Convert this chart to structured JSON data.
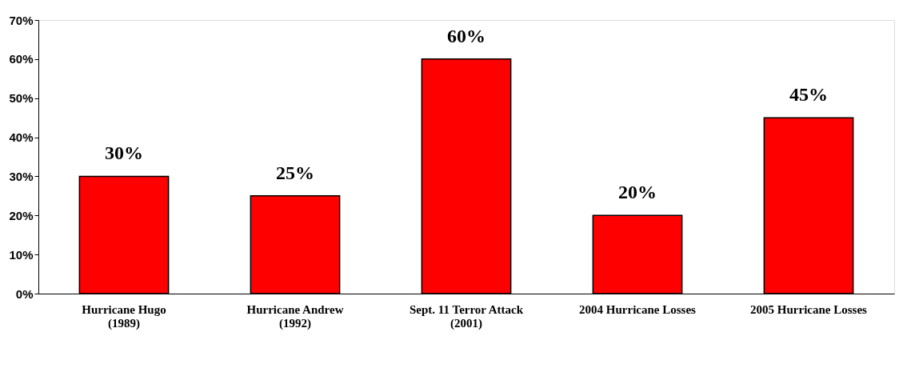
{
  "chart_data": {
    "type": "bar",
    "categories": [
      "Hurricane Hugo\n(1989)",
      "Hurricane Andrew\n(1992)",
      "Sept. 11 Terror Attack\n(2001)",
      "2004 Hurricane Losses",
      "2005 Hurricane Losses"
    ],
    "values": [
      30,
      25,
      60,
      20,
      45
    ],
    "value_labels": [
      "30%",
      "25%",
      "60%",
      "20%",
      "45%"
    ],
    "color": "#ff0000",
    "ylim": [
      0,
      70
    ],
    "yticks": [
      {
        "value": 0,
        "label": "0%"
      },
      {
        "value": 10,
        "label": "10%"
      },
      {
        "value": 20,
        "label": "20%"
      },
      {
        "value": 30,
        "label": "30%"
      },
      {
        "value": 40,
        "label": "40%"
      },
      {
        "value": 50,
        "label": "50%"
      },
      {
        "value": 60,
        "label": "60%"
      },
      {
        "value": 70,
        "label": "70%"
      }
    ],
    "grid": false
  }
}
